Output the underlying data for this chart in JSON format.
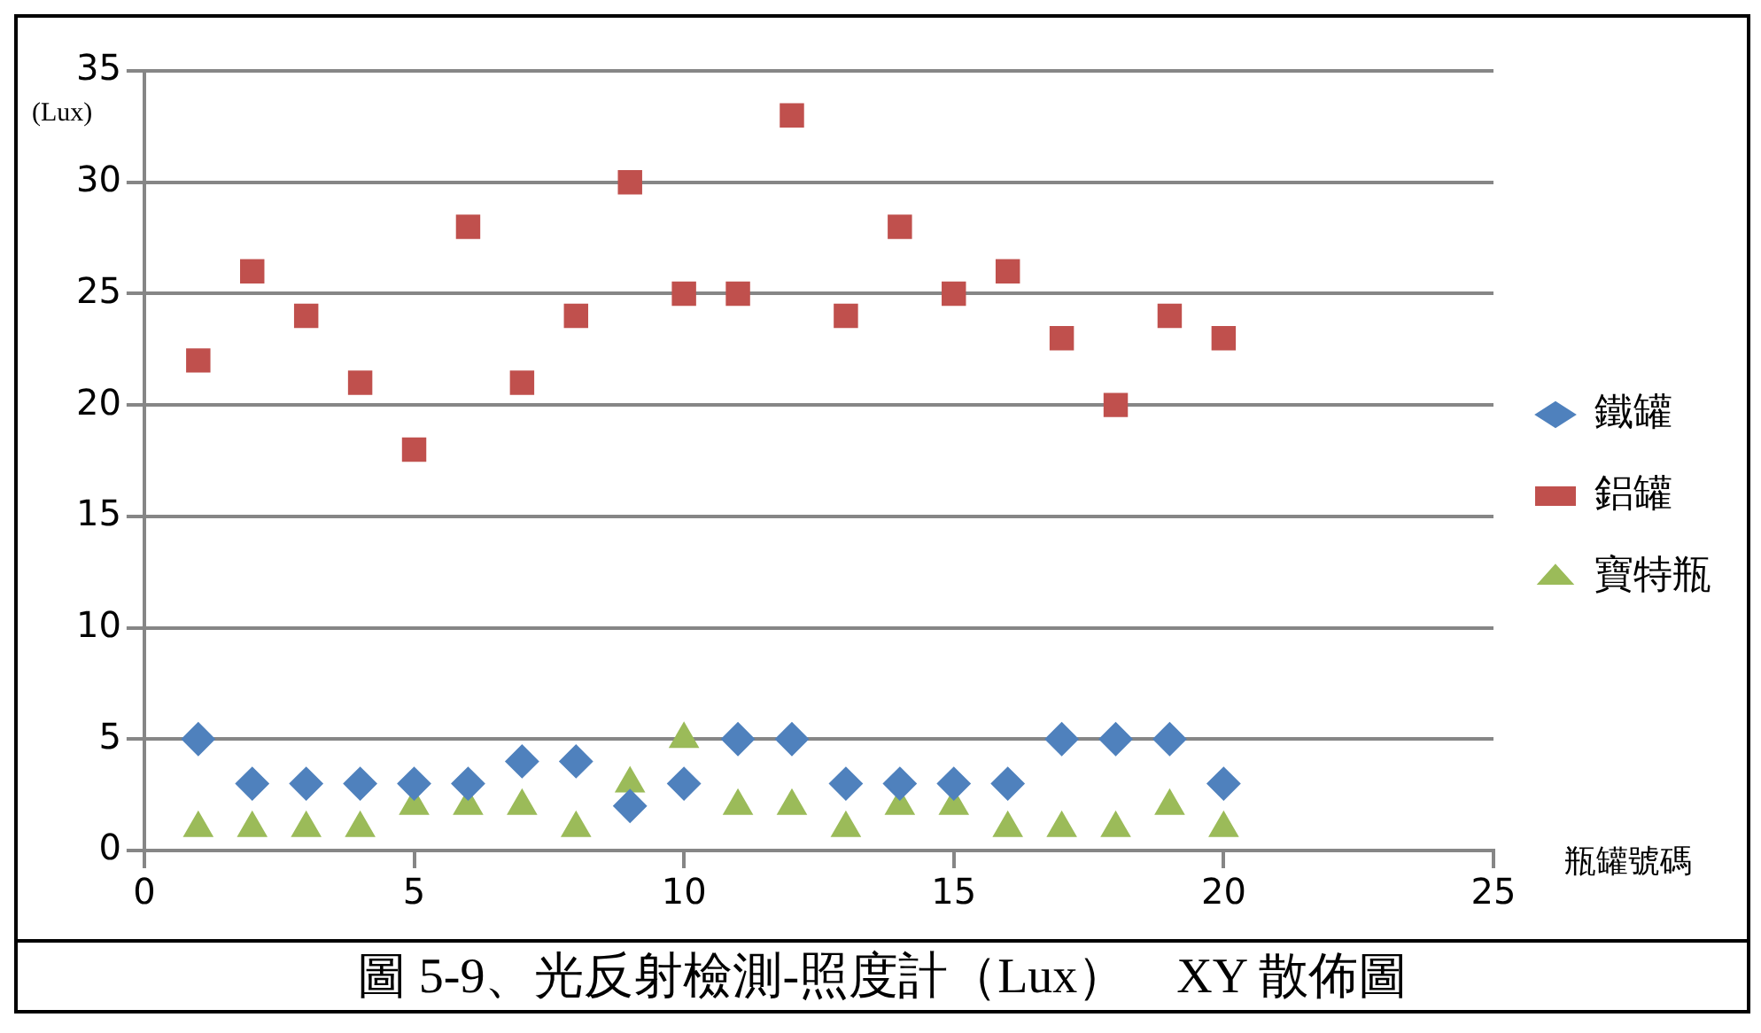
{
  "chart_data": {
    "type": "scatter",
    "title": "圖 5-9、光反射檢測-照度計（Lux）　XY 散佈圖",
    "xlabel": "瓶罐號碼",
    "ylabel": "(Lux)",
    "x": [
      1,
      2,
      3,
      4,
      5,
      6,
      7,
      8,
      9,
      10,
      11,
      12,
      13,
      14,
      15,
      16,
      17,
      18,
      19,
      20
    ],
    "series": [
      {
        "name": "鐵罐",
        "color": "#4f81bd",
        "marker": "diamond",
        "values": [
          5,
          3,
          3,
          3,
          3,
          3,
          4,
          4,
          2,
          3,
          5,
          5,
          3,
          3,
          3,
          3,
          5,
          5,
          5,
          3
        ]
      },
      {
        "name": "鋁罐",
        "color": "#c0504d",
        "marker": "square",
        "values": [
          22,
          26,
          24,
          21,
          18,
          28,
          21,
          24,
          30,
          25,
          25,
          33,
          24,
          28,
          25,
          26,
          23,
          20,
          24,
          23
        ]
      },
      {
        "name": "寶特瓶",
        "color": "#9bbb59",
        "marker": "triangle",
        "values": [
          1,
          1,
          1,
          1,
          2,
          2,
          2,
          1,
          3,
          5,
          2,
          2,
          1,
          2,
          2,
          1,
          1,
          1,
          2,
          1
        ]
      }
    ],
    "xlim": [
      0,
      25
    ],
    "xticks": [
      0,
      5,
      10,
      15,
      20,
      25
    ],
    "ylim": [
      0,
      35
    ],
    "yticks": [
      0,
      5,
      10,
      15,
      20,
      25,
      30,
      35
    ],
    "grid": "y",
    "legend": "right"
  }
}
